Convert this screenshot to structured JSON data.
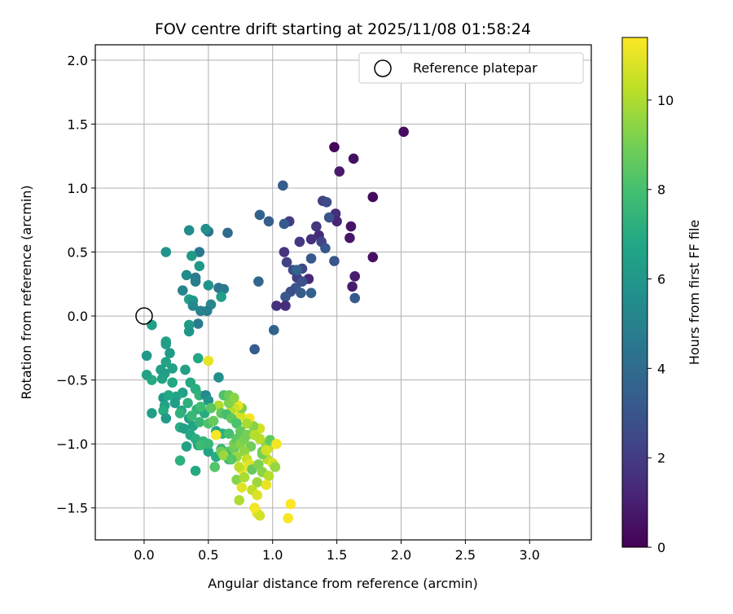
{
  "chart_data": {
    "type": "scatter",
    "title": "FOV centre drift starting at 2025/11/08 01:58:24",
    "xlabel": "Angular distance from reference (arcmin)",
    "ylabel": "Rotation from reference (arcmin)",
    "xlim": [
      -0.38,
      3.48
    ],
    "ylim": [
      -1.75,
      2.12
    ],
    "xticks": [
      0.0,
      0.5,
      1.0,
      1.5,
      2.0,
      2.5,
      3.0
    ],
    "yticks": [
      -1.5,
      -1.0,
      -0.5,
      0.0,
      0.5,
      1.0,
      1.5,
      2.0
    ],
    "xtick_labels": [
      "0.0",
      "0.5",
      "1.0",
      "1.5",
      "2.0",
      "2.5",
      "3.0"
    ],
    "ytick_labels": [
      "−1.5",
      "−1.0",
      "−0.5",
      "0.0",
      "0.5",
      "1.0",
      "1.5",
      "2.0"
    ],
    "grid": true,
    "legend": {
      "placement": "top-right",
      "entries": [
        "Reference platepar"
      ]
    },
    "reference_point": {
      "x": 0.0,
      "y": 0.0,
      "label": "Reference platepar",
      "marker": "open circle"
    },
    "colorbar": {
      "label": "Hours from first FF file",
      "range": [
        0,
        11.4
      ],
      "ticks": [
        0,
        2,
        4,
        6,
        8,
        10
      ],
      "tick_labels": [
        "0",
        "2",
        "4",
        "6",
        "8",
        "10"
      ],
      "colormap": "viridis"
    },
    "points": [
      [
        1.48,
        1.32,
        0.2
      ],
      [
        2.02,
        1.44,
        0.4
      ],
      [
        1.63,
        1.23,
        0.5
      ],
      [
        1.52,
        1.13,
        0.8
      ],
      [
        1.78,
        0.93,
        0.3
      ],
      [
        1.49,
        0.8,
        1.5
      ],
      [
        1.61,
        0.7,
        0.6
      ],
      [
        1.5,
        0.74,
        1.2
      ],
      [
        1.6,
        0.61,
        0.7
      ],
      [
        1.64,
        0.31,
        0.9
      ],
      [
        1.78,
        0.46,
        0.5
      ],
      [
        1.62,
        0.23,
        0.8
      ],
      [
        1.34,
        0.7,
        1.8
      ],
      [
        1.39,
        0.9,
        2.2
      ],
      [
        1.42,
        0.89,
        2.6
      ],
      [
        1.44,
        0.77,
        2.9
      ],
      [
        1.36,
        0.63,
        1.4
      ],
      [
        1.3,
        0.6,
        1.6
      ],
      [
        1.21,
        0.58,
        1.9
      ],
      [
        1.38,
        0.58,
        2.3
      ],
      [
        1.41,
        0.53,
        3.1
      ],
      [
        1.48,
        0.43,
        3.0
      ],
      [
        1.13,
        0.74,
        2.0
      ],
      [
        1.09,
        0.72,
        3.2
      ],
      [
        1.08,
        1.02,
        3.3
      ],
      [
        0.97,
        0.74,
        3.4
      ],
      [
        0.9,
        0.79,
        3.6
      ],
      [
        1.09,
        0.5,
        1.7
      ],
      [
        1.11,
        0.42,
        2.2
      ],
      [
        1.16,
        0.36,
        2.5
      ],
      [
        1.23,
        0.37,
        2.4
      ],
      [
        1.28,
        0.29,
        1.3
      ],
      [
        1.19,
        0.3,
        2.1
      ],
      [
        1.23,
        0.27,
        2.8
      ],
      [
        1.18,
        0.22,
        3.0
      ],
      [
        1.14,
        0.19,
        2.7
      ],
      [
        1.1,
        0.15,
        3.1
      ],
      [
        1.3,
        0.45,
        3.2
      ],
      [
        1.3,
        0.18,
        3.5
      ],
      [
        1.22,
        0.18,
        3.3
      ],
      [
        1.19,
        0.36,
        3.7
      ],
      [
        1.03,
        0.08,
        1.6
      ],
      [
        1.1,
        0.08,
        1.5
      ],
      [
        1.64,
        0.14,
        3.2
      ],
      [
        0.89,
        0.27,
        3.8
      ],
      [
        1.01,
        -0.11,
        3.6
      ],
      [
        0.86,
        -0.26,
        3.3
      ],
      [
        0.65,
        0.65,
        3.9
      ],
      [
        0.5,
        0.66,
        4.2
      ],
      [
        0.48,
        0.68,
        5.6
      ],
      [
        0.35,
        0.67,
        5.5
      ],
      [
        0.43,
        0.5,
        4.5
      ],
      [
        0.17,
        0.5,
        5.9
      ],
      [
        0.37,
        0.47,
        6.2
      ],
      [
        0.43,
        0.39,
        6.0
      ],
      [
        0.33,
        0.32,
        5.4
      ],
      [
        0.4,
        0.3,
        4.6
      ],
      [
        0.4,
        0.27,
        4.8
      ],
      [
        0.3,
        0.2,
        5.1
      ],
      [
        0.5,
        0.24,
        5.8
      ],
      [
        0.58,
        0.22,
        4.3
      ],
      [
        0.62,
        0.21,
        4.6
      ],
      [
        0.6,
        0.15,
        6.3
      ],
      [
        0.35,
        0.13,
        6.5
      ],
      [
        0.38,
        0.12,
        6.0
      ],
      [
        0.38,
        0.08,
        5.3
      ],
      [
        0.44,
        0.04,
        5.0
      ],
      [
        0.52,
        0.09,
        5.2
      ],
      [
        0.49,
        0.04,
        4.9
      ],
      [
        0.42,
        -0.06,
        4.7
      ],
      [
        0.35,
        -0.07,
        6.2
      ],
      [
        0.35,
        -0.12,
        5.9
      ],
      [
        0.06,
        -0.07,
        6.4
      ],
      [
        0.42,
        -0.33,
        6.8
      ],
      [
        0.5,
        -0.35,
        11.0
      ],
      [
        0.17,
        -0.2,
        6.6
      ],
      [
        0.17,
        -0.22,
        6.3
      ],
      [
        0.02,
        -0.31,
        6.1
      ],
      [
        0.2,
        -0.29,
        6.2
      ],
      [
        0.17,
        -0.36,
        6.6
      ],
      [
        0.13,
        -0.42,
        6.4
      ],
      [
        0.22,
        -0.41,
        6.5
      ],
      [
        0.16,
        -0.45,
        6.3
      ],
      [
        0.06,
        -0.5,
        7.0
      ],
      [
        0.02,
        -0.46,
        6.5
      ],
      [
        0.14,
        -0.49,
        6.6
      ],
      [
        0.32,
        -0.42,
        6.4
      ],
      [
        0.22,
        -0.52,
        6.8
      ],
      [
        0.36,
        -0.52,
        6.9
      ],
      [
        0.58,
        -0.48,
        5.6
      ],
      [
        0.4,
        -0.57,
        7.1
      ],
      [
        0.3,
        -0.6,
        6.6
      ],
      [
        0.43,
        -0.62,
        7.4
      ],
      [
        0.25,
        -0.63,
        6.7
      ],
      [
        0.15,
        -0.64,
        6.1
      ],
      [
        0.24,
        -0.68,
        6.3
      ],
      [
        0.19,
        -0.62,
        6.8
      ],
      [
        0.16,
        -0.7,
        6.5
      ],
      [
        0.15,
        -0.74,
        7.0
      ],
      [
        0.17,
        -0.8,
        6.2
      ],
      [
        0.06,
        -0.76,
        6.4
      ],
      [
        0.29,
        -0.74,
        6.6
      ],
      [
        0.34,
        -0.68,
        7.2
      ],
      [
        0.48,
        -0.62,
        5.3
      ],
      [
        0.5,
        -0.66,
        5.9
      ],
      [
        0.41,
        -0.73,
        7.3
      ],
      [
        0.47,
        -0.76,
        7.0
      ],
      [
        0.35,
        -0.8,
        6.3
      ],
      [
        0.28,
        -0.87,
        7.1
      ],
      [
        0.31,
        -0.88,
        6.4
      ],
      [
        0.38,
        -0.86,
        6.6
      ],
      [
        0.43,
        -0.83,
        7.5
      ],
      [
        0.5,
        -0.84,
        8.2
      ],
      [
        0.54,
        -0.82,
        8.7
      ],
      [
        0.56,
        -0.9,
        6.7
      ],
      [
        0.61,
        -0.92,
        7.2
      ],
      [
        0.66,
        -0.92,
        8.0
      ],
      [
        0.36,
        -0.93,
        6.9
      ],
      [
        0.4,
        -0.96,
        7.1
      ],
      [
        0.46,
        -0.98,
        7.5
      ],
      [
        0.42,
        -1.01,
        6.8
      ],
      [
        0.33,
        -1.02,
        6.5
      ],
      [
        0.28,
        -1.13,
        7.2
      ],
      [
        0.44,
        -1.01,
        7.8
      ],
      [
        0.5,
        -1.06,
        6.6
      ],
      [
        0.56,
        -1.1,
        7.0
      ],
      [
        0.6,
        -1.04,
        7.4
      ],
      [
        0.66,
        -1.06,
        8.3
      ],
      [
        0.7,
        -1.04,
        8.8
      ],
      [
        0.66,
        -1.12,
        7.3
      ],
      [
        0.64,
        -1.09,
        7.7
      ],
      [
        0.7,
        -1.0,
        9.0
      ],
      [
        0.72,
        -0.96,
        8.5
      ],
      [
        0.75,
        -1.0,
        9.3
      ],
      [
        0.78,
        -0.96,
        9.1
      ],
      [
        0.84,
        -0.92,
        9.8
      ],
      [
        0.83,
        -1.02,
        8.9
      ],
      [
        0.78,
        -1.06,
        9.5
      ],
      [
        0.72,
        -1.1,
        9.6
      ],
      [
        0.8,
        -1.12,
        10.4
      ],
      [
        0.82,
        -1.16,
        10.9
      ],
      [
        0.76,
        -1.2,
        11.1
      ],
      [
        0.72,
        -1.28,
        9.3
      ],
      [
        0.78,
        -1.26,
        9.9
      ],
      [
        0.84,
        -1.2,
        8.7
      ],
      [
        0.89,
        -1.16,
        9.2
      ],
      [
        0.92,
        -1.22,
        9.4
      ],
      [
        0.96,
        -1.12,
        10.2
      ],
      [
        0.92,
        -1.08,
        9.0
      ],
      [
        0.97,
        -1.03,
        10.5
      ],
      [
        1.0,
        -1.15,
        10.7
      ],
      [
        1.02,
        -1.18,
        9.6
      ],
      [
        0.97,
        -1.25,
        10.1
      ],
      [
        0.88,
        -1.3,
        9.7
      ],
      [
        0.84,
        -1.36,
        10.3
      ],
      [
        0.95,
        -1.32,
        11.0
      ],
      [
        0.88,
        -1.4,
        10.8
      ],
      [
        0.92,
        -1.06,
        9.0
      ],
      [
        0.95,
        -1.0,
        9.5
      ],
      [
        0.98,
        -0.97,
        8.6
      ],
      [
        0.9,
        -0.88,
        10.6
      ],
      [
        0.85,
        -0.86,
        9.3
      ],
      [
        0.82,
        -0.8,
        11.2
      ],
      [
        0.8,
        -0.84,
        9.9
      ],
      [
        0.75,
        -0.78,
        10.7
      ],
      [
        0.76,
        -0.72,
        9.2
      ],
      [
        0.73,
        -0.7,
        11.1
      ],
      [
        0.7,
        -0.72,
        10.5
      ],
      [
        0.67,
        -0.75,
        10.1
      ],
      [
        0.66,
        -0.68,
        9.2
      ],
      [
        0.62,
        -0.62,
        8.2
      ],
      [
        0.66,
        -0.62,
        8.8
      ],
      [
        0.7,
        -0.64,
        9.4
      ],
      [
        0.58,
        -0.7,
        10.0
      ],
      [
        0.6,
        -0.76,
        8.5
      ],
      [
        0.56,
        -0.93,
        11.3
      ],
      [
        0.64,
        -0.77,
        8.0
      ],
      [
        0.68,
        -0.8,
        8.5
      ],
      [
        0.72,
        -0.84,
        8.1
      ],
      [
        0.75,
        -0.9,
        8.6
      ],
      [
        0.8,
        -0.93,
        9.0
      ],
      [
        0.5,
        -1.0,
        7.6
      ],
      [
        0.55,
        -1.18,
        8.3
      ],
      [
        0.4,
        -1.21,
        6.9
      ],
      [
        0.6,
        -1.06,
        8.9
      ],
      [
        0.62,
        -1.09,
        9.7
      ],
      [
        0.68,
        -1.12,
        8.4
      ],
      [
        0.74,
        -1.18,
        10.3
      ],
      [
        0.76,
        -1.34,
        10.9
      ],
      [
        0.74,
        -1.44,
        10.0
      ],
      [
        0.88,
        -1.54,
        11.0
      ],
      [
        0.9,
        -1.56,
        10.6
      ],
      [
        0.86,
        -1.5,
        11.2
      ],
      [
        1.12,
        -1.58,
        11.3
      ],
      [
        1.14,
        -1.47,
        11.4
      ],
      [
        1.03,
        -1.0,
        11.2
      ],
      [
        0.95,
        -1.05,
        10.6
      ],
      [
        0.9,
        -0.96,
        10.2
      ],
      [
        0.86,
        -0.93,
        10.1
      ],
      [
        0.52,
        -0.72,
        8.4
      ],
      [
        0.44,
        -0.71,
        7.8
      ],
      [
        0.28,
        -0.76,
        7.3
      ],
      [
        0.37,
        -0.78,
        7.6
      ]
    ]
  }
}
